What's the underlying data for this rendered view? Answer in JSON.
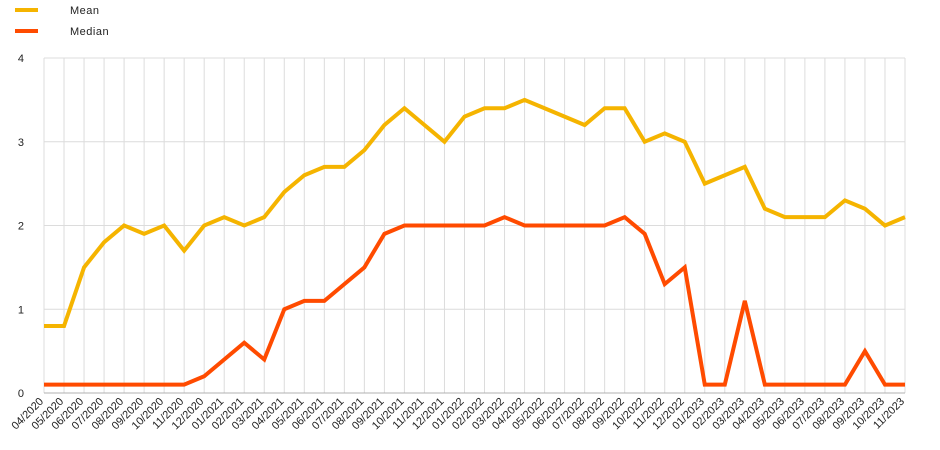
{
  "chart_data": {
    "type": "line",
    "title": "",
    "xlabel": "",
    "ylabel": "",
    "ylim": [
      0,
      4
    ],
    "yticks": [
      "0",
      "1",
      "2",
      "3",
      "4"
    ],
    "grid": true,
    "legend_position": "top-left",
    "categories": [
      "04/2020",
      "05/2020",
      "06/2020",
      "07/2020",
      "08/2020",
      "09/2020",
      "10/2020",
      "11/2020",
      "12/2020",
      "01/2021",
      "02/2021",
      "03/2021",
      "04/2021",
      "05/2021",
      "06/2021",
      "07/2021",
      "08/2021",
      "09/2021",
      "10/2021",
      "11/2021",
      "12/2021",
      "01/2022",
      "02/2022",
      "03/2022",
      "04/2022",
      "05/2022",
      "06/2022",
      "07/2022",
      "08/2022",
      "09/2022",
      "10/2022",
      "11/2022",
      "12/2022",
      "01/2023",
      "02/2023",
      "03/2023",
      "04/2023",
      "05/2023",
      "06/2023",
      "07/2023",
      "08/2023",
      "09/2023",
      "10/2023",
      "11/2023"
    ],
    "series": [
      {
        "name": "Mean",
        "color": "#f5b400",
        "values": [
          0.8,
          0.8,
          1.5,
          1.8,
          2.0,
          1.9,
          2.0,
          1.7,
          2.0,
          2.1,
          2.0,
          2.1,
          2.4,
          2.6,
          2.7,
          2.7,
          2.9,
          3.2,
          3.4,
          3.2,
          3.0,
          3.3,
          3.4,
          3.4,
          3.5,
          3.4,
          3.3,
          3.2,
          3.4,
          3.4,
          3.0,
          3.1,
          3.0,
          2.5,
          2.6,
          2.7,
          2.2,
          2.1,
          2.1,
          2.1,
          2.3,
          2.2,
          2.0,
          2.1
        ]
      },
      {
        "name": "Median",
        "color": "#ff4b00",
        "values": [
          0.1,
          0.1,
          0.1,
          0.1,
          0.1,
          0.1,
          0.1,
          0.1,
          0.2,
          0.4,
          0.6,
          0.4,
          1.0,
          1.1,
          1.1,
          1.3,
          1.5,
          1.9,
          2.0,
          2.0,
          2.0,
          2.0,
          2.0,
          2.1,
          2.0,
          2.0,
          2.0,
          2.0,
          2.0,
          2.1,
          1.9,
          1.3,
          1.5,
          0.1,
          0.1,
          1.1,
          0.1,
          0.1,
          0.1,
          0.1,
          0.1,
          0.5,
          0.1,
          0.1
        ]
      }
    ]
  }
}
